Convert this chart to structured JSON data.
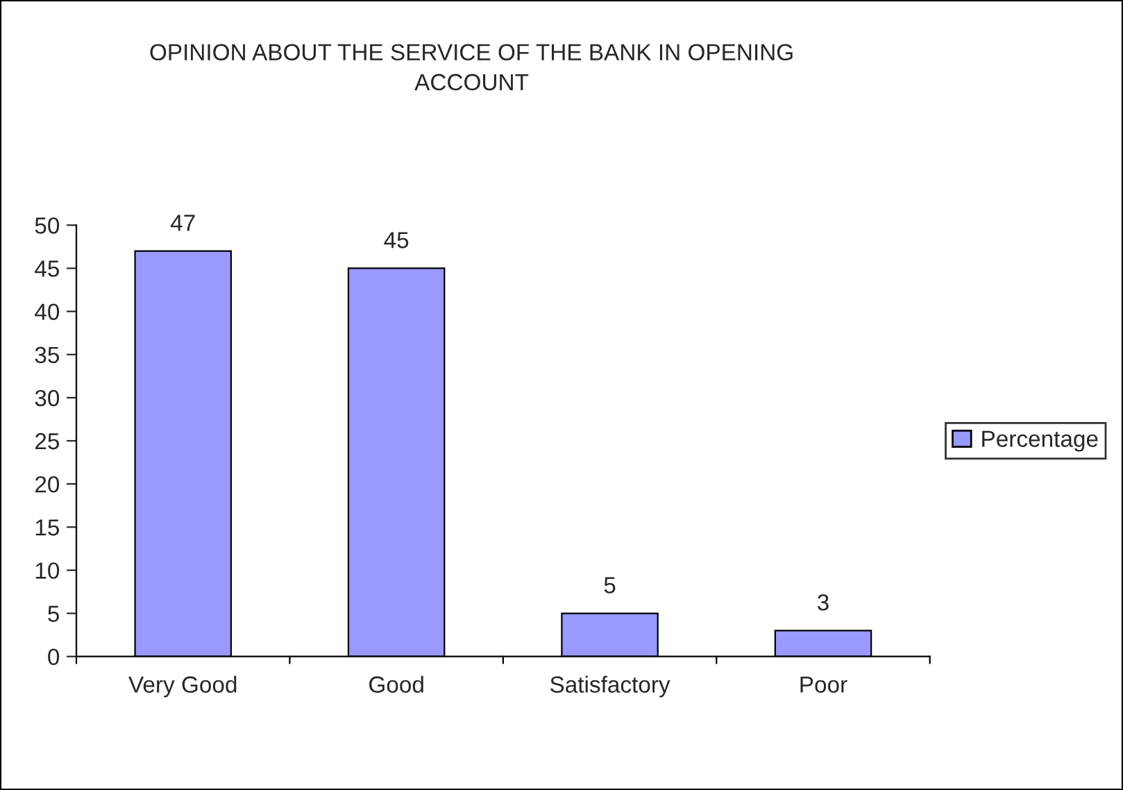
{
  "chart_data": {
    "type": "bar",
    "title": "OPINION ABOUT THE SERVICE OF THE BANK IN OPENING\nACCOUNT",
    "categories": [
      "Very Good",
      "Good",
      "Satisfactory",
      "Poor"
    ],
    "series": [
      {
        "name": "Percentage",
        "color": "#9999ff",
        "values": [
          47,
          45,
          5,
          3
        ]
      }
    ],
    "ylim": [
      0,
      50
    ],
    "yticks": [
      0,
      5,
      10,
      15,
      20,
      25,
      30,
      35,
      40,
      45,
      50
    ],
    "data_labels": true,
    "legend": "right",
    "grid": false
  }
}
